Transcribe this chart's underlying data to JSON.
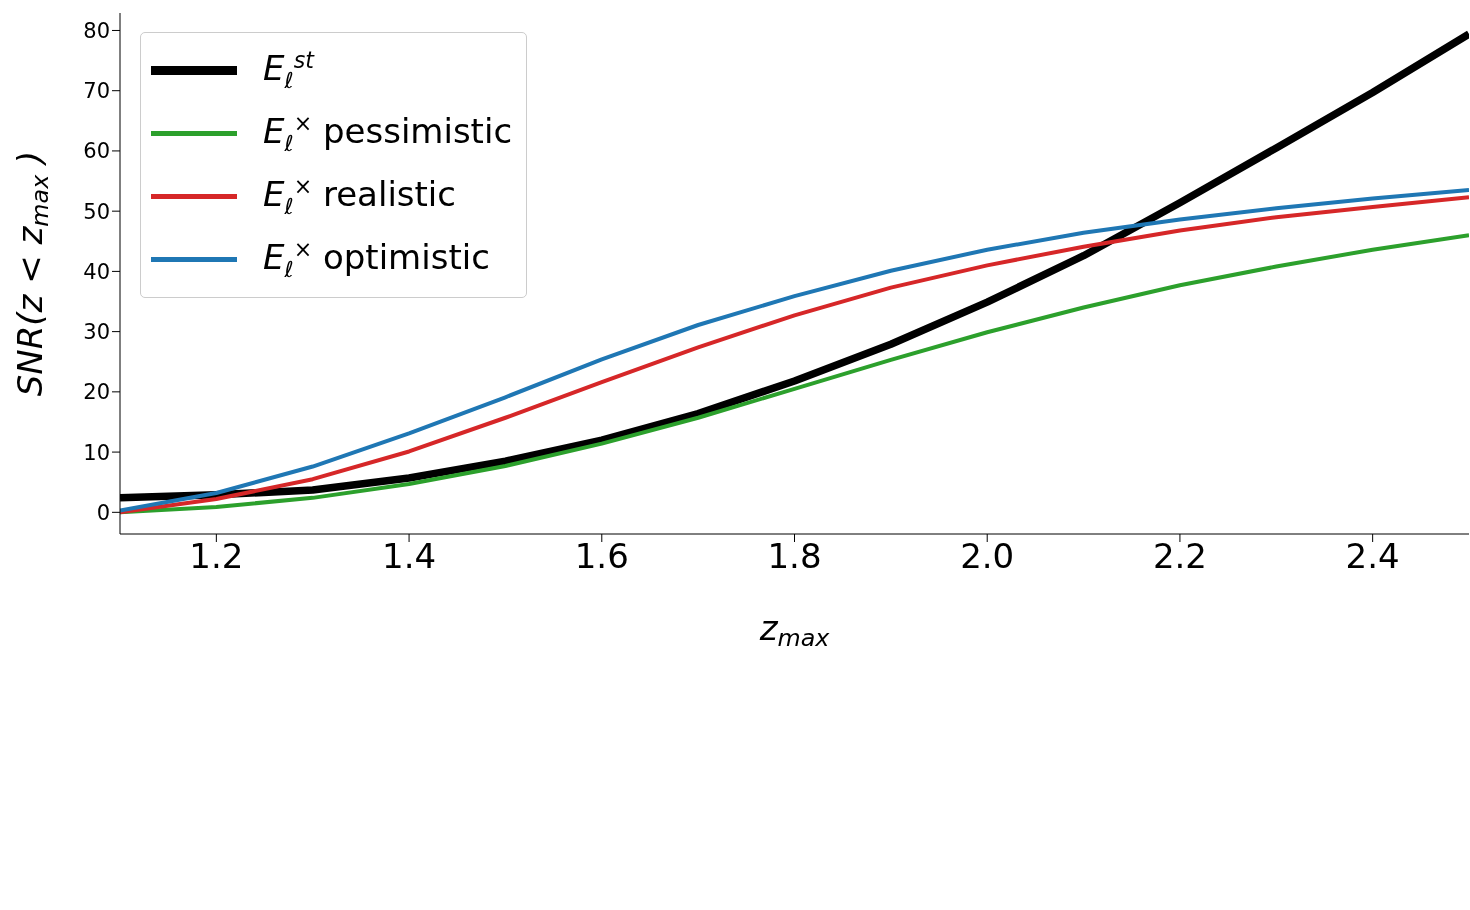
{
  "chart_data": {
    "type": "line",
    "xlabel": "z$_{max}$",
    "ylabel": "SNR(z < z$_{max}$)",
    "x": [
      1.1,
      1.2,
      1.3,
      1.4,
      1.5,
      1.6,
      1.7,
      1.8,
      1.9,
      2.0,
      2.1,
      2.2,
      2.3,
      2.4,
      2.5
    ],
    "series": [
      {
        "name": "E$_{ℓ}$$^{st}$",
        "color": "#000000",
        "values": [
          2.4,
          2.9,
          3.7,
          5.7,
          8.5,
          12.0,
          16.4,
          21.8,
          27.9,
          34.9,
          42.6,
          51.4,
          60.5,
          69.7,
          79.4
        ]
      },
      {
        "name": "E$_{ℓ}$$^{×}$ pessimistic",
        "color": "#2ca02c",
        "values": [
          0,
          0.9,
          2.4,
          4.7,
          7.7,
          11.4,
          15.7,
          20.5,
          25.3,
          29.9,
          34.0,
          37.7,
          40.8,
          43.6,
          46.0
        ]
      },
      {
        "name": "E$_{ℓ}$$^{×}$ realistic",
        "color": "#d62728",
        "values": [
          0,
          2.2,
          5.5,
          10.1,
          15.7,
          21.6,
          27.4,
          32.7,
          37.3,
          41.0,
          44.1,
          46.8,
          49.0,
          50.7,
          52.3
        ]
      },
      {
        "name": "E$_{ℓ}$$^{×}$ optimistic",
        "color": "#1f77b4",
        "values": [
          0.3,
          3.2,
          7.6,
          13.1,
          19.1,
          25.4,
          31.1,
          35.9,
          40.1,
          43.6,
          46.4,
          48.6,
          50.5,
          52.1,
          53.5
        ]
      }
    ],
    "xlim": [
      1.1,
      2.5
    ],
    "xticks": [
      1.2,
      1.4,
      1.6,
      1.8,
      {
        "value": 2,
        "label": "2.0"
      },
      2.2,
      2.4
    ],
    "ylim": [
      -3.6,
      82.9
    ],
    "yticks": [
      0,
      10,
      20,
      30,
      40,
      50,
      60,
      70,
      80
    ],
    "grid": false,
    "legend": "top left"
  }
}
